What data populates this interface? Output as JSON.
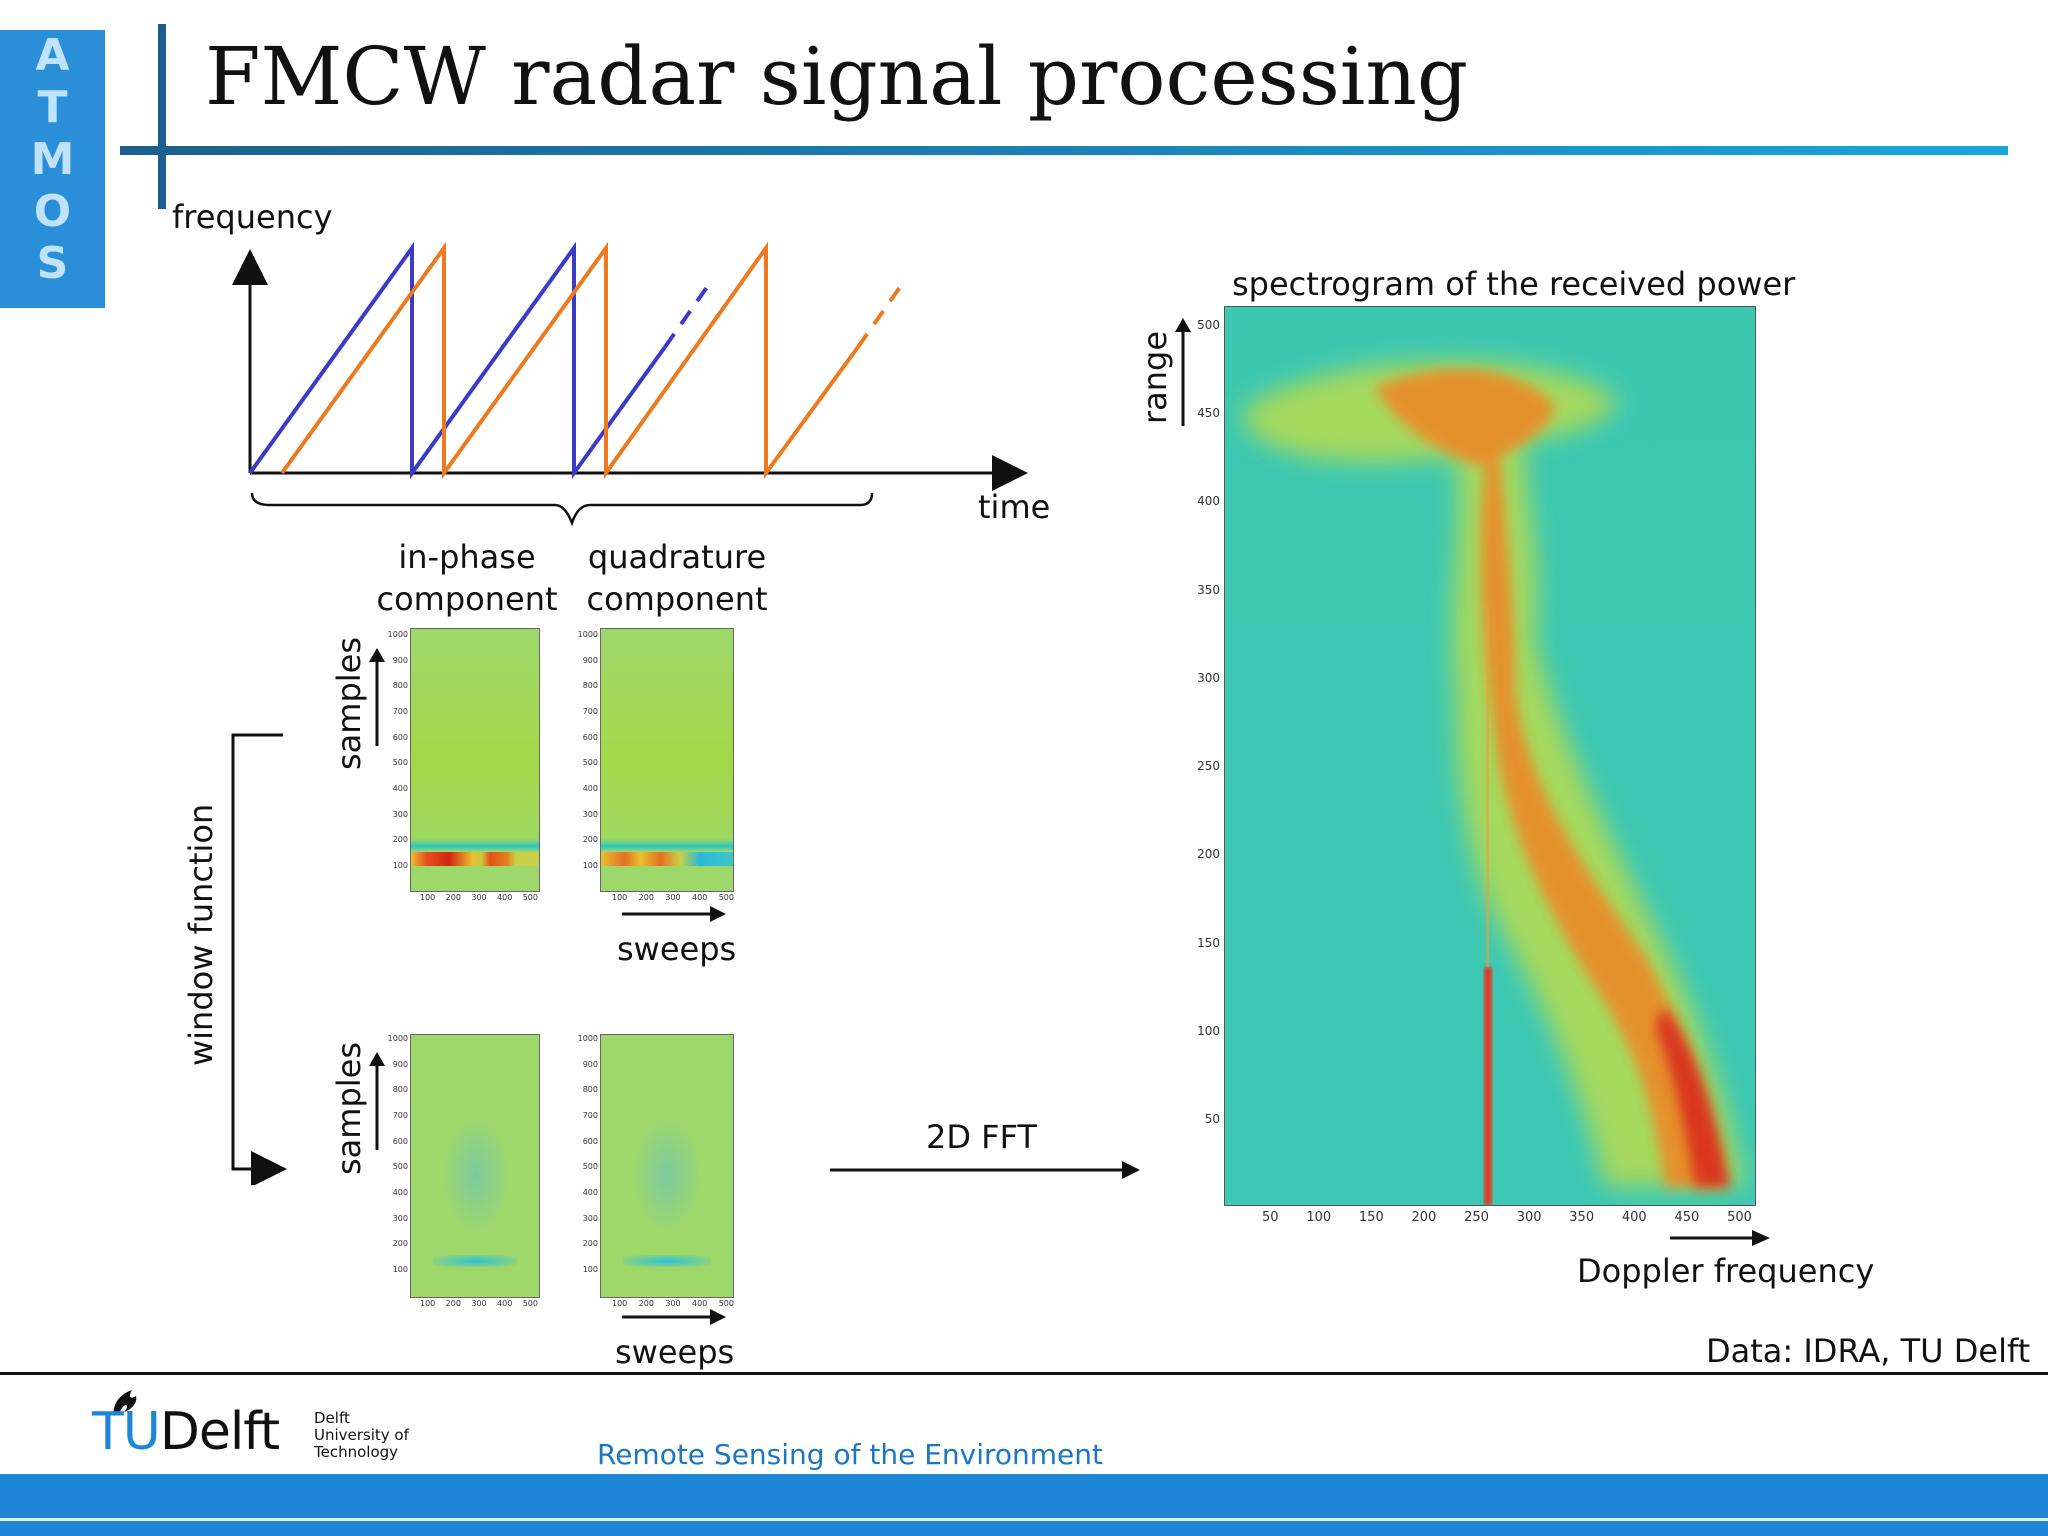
{
  "slide": {
    "title": "FMCW radar signal processing",
    "logo_letters": [
      "A",
      "T",
      "M",
      "O",
      "S"
    ]
  },
  "chirp_diagram": {
    "y_label": "frequency",
    "x_label": "time",
    "colors": {
      "transmitted": "#3b3bc8",
      "received": "#ee7a20"
    }
  },
  "iq": {
    "inphase_label": "in-phase\ncomponent",
    "quadrature_label": "quadrature\ncomponent",
    "samples_label": "samples",
    "sweeps_label": "sweeps",
    "window_label": "window function",
    "top_y_ticks": [
      "1000",
      "900",
      "800",
      "700",
      "600",
      "500",
      "400",
      "300",
      "200",
      "100"
    ],
    "bottom_y_ticks": [
      "1000",
      "900",
      "800",
      "700",
      "600",
      "500",
      "400",
      "300",
      "200",
      "100"
    ],
    "x_ticks": [
      "100",
      "200",
      "300",
      "400",
      "500"
    ]
  },
  "fft": {
    "label": "2D FFT"
  },
  "spectrogram": {
    "title": "spectrogram of the received power",
    "y_label": "range",
    "x_label": "Doppler frequency",
    "y_ticks": [
      "500",
      "450",
      "400",
      "350",
      "300",
      "250",
      "200",
      "150",
      "100",
      "50"
    ],
    "x_ticks": [
      "50",
      "100",
      "150",
      "200",
      "250",
      "300",
      "350",
      "400",
      "450",
      "500"
    ],
    "background_color": "#3cc8b0"
  },
  "credit": "Data: IDRA, TU Delft",
  "footer": {
    "course": "Remote Sensing of the Environment",
    "logo_tu": "TU",
    "logo_delft": "Delft",
    "logo_line1": "Delft",
    "logo_line2": "University of",
    "logo_line3": "Technology"
  }
}
